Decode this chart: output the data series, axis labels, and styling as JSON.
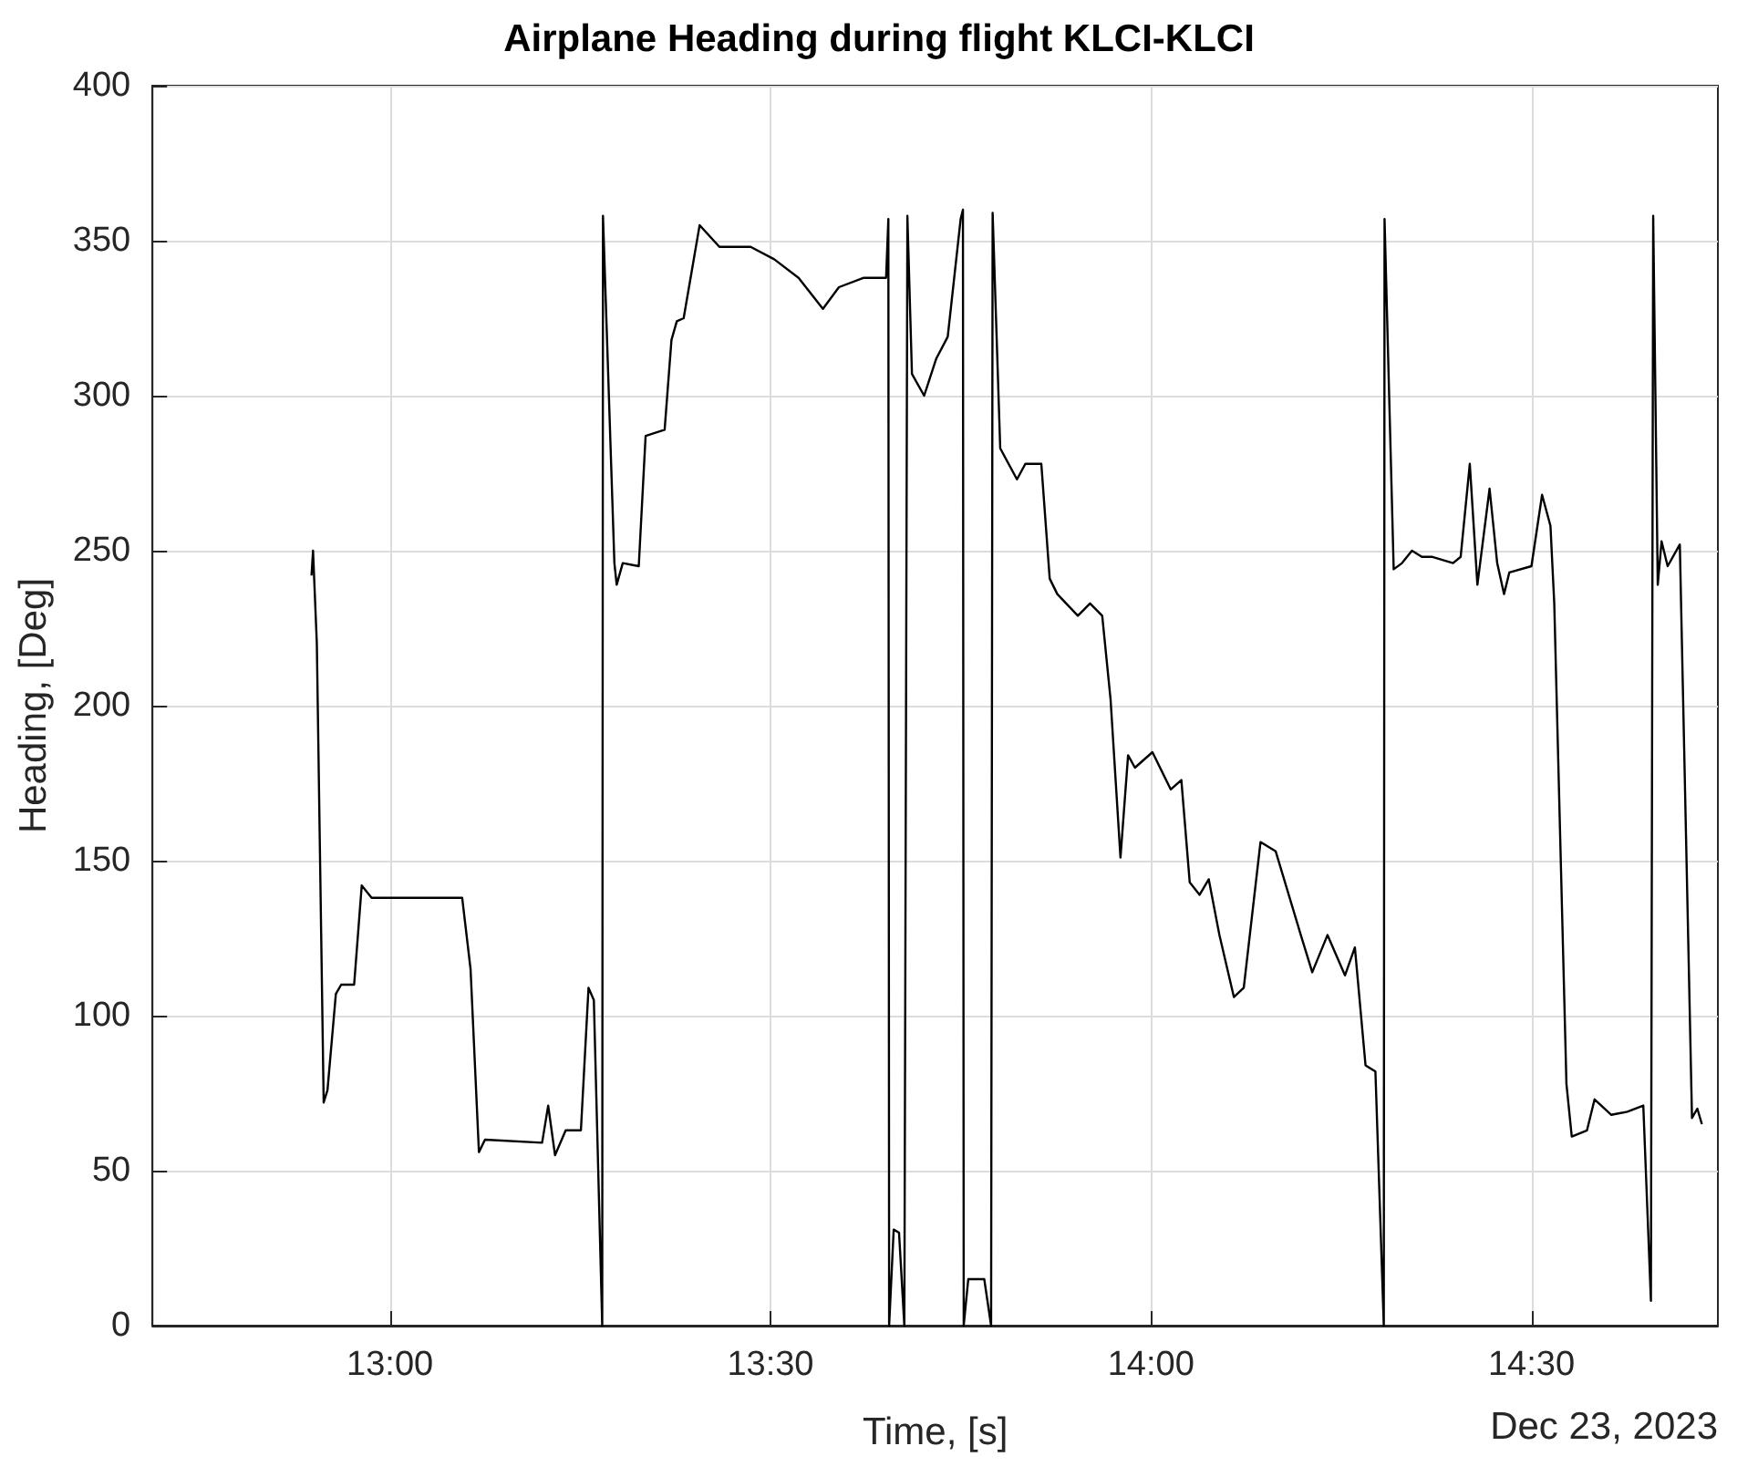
{
  "chart_data": {
    "type": "line",
    "title": "Airplane Heading during flight KLCI-KLCI",
    "xlabel": "Time, [s]",
    "ylabel": "Heading, [Deg]",
    "annotations": [
      "Dec 23, 2023"
    ],
    "xlim": [
      12.688,
      14.745
    ],
    "ylim": [
      0,
      400
    ],
    "xticks": [
      {
        "value": 13,
        "label": "13:00"
      },
      {
        "value": 13.5,
        "label": "13:30"
      },
      {
        "value": 14,
        "label": "14:00"
      },
      {
        "value": 14.5,
        "label": "14:30"
      }
    ],
    "yticks": [
      0,
      50,
      100,
      150,
      200,
      250,
      300,
      350,
      400
    ],
    "grid": true,
    "marker": "none",
    "line_style": "solid",
    "series": [
      {
        "color": "#000000",
        "x": [
          12.897,
          12.899,
          12.904,
          12.913,
          12.918,
          12.929,
          12.936,
          12.953,
          12.963,
          12.976,
          13.095,
          13.106,
          13.117,
          13.125,
          13.2,
          13.208,
          13.217,
          13.231,
          13.251,
          13.261,
          13.268,
          13.279,
          13.28,
          13.295,
          13.298,
          13.306,
          13.327,
          13.336,
          13.361,
          13.37,
          13.377,
          13.386,
          13.407,
          13.433,
          13.455,
          13.474,
          13.505,
          13.537,
          13.569,
          13.59,
          13.622,
          13.652,
          13.655,
          13.656,
          13.662,
          13.669,
          13.676,
          13.68,
          13.686,
          13.702,
          13.718,
          13.733,
          13.75,
          13.753,
          13.754,
          13.76,
          13.781,
          13.79,
          13.792,
          13.802,
          13.824,
          13.835,
          13.856,
          13.867,
          13.877,
          13.904,
          13.92,
          13.936,
          13.947,
          13.96,
          13.97,
          13.979,
          14.002,
          14.026,
          14.04,
          14.051,
          14.064,
          14.076,
          14.09,
          14.109,
          14.122,
          14.144,
          14.164,
          14.197,
          14.212,
          14.232,
          14.255,
          14.268,
          14.282,
          14.295,
          14.306,
          14.307,
          14.319,
          14.33,
          14.343,
          14.356,
          14.37,
          14.397,
          14.407,
          14.419,
          14.429,
          14.445,
          14.455,
          14.464,
          14.471,
          14.5,
          14.514,
          14.525,
          14.53,
          14.546,
          14.553,
          14.573,
          14.583,
          14.605,
          14.626,
          14.647,
          14.657,
          14.66,
          14.666,
          14.671,
          14.679,
          14.695,
          14.711,
          14.718,
          14.724
        ],
        "values": [
          242,
          250,
          220,
          72,
          76,
          107,
          110,
          110,
          142,
          138,
          138,
          115,
          56,
          60,
          59,
          71,
          55,
          63,
          63,
          109,
          105,
          0,
          358,
          246,
          239,
          246,
          245,
          287,
          289,
          318,
          324,
          325,
          355,
          348,
          348,
          348,
          344,
          338,
          328,
          335,
          338,
          338,
          357,
          0,
          31,
          30,
          0,
          358,
          307,
          300,
          312,
          319,
          357,
          360,
          0,
          15,
          15,
          0,
          359,
          283,
          273,
          278,
          278,
          241,
          236,
          229,
          233,
          229,
          202,
          151,
          184,
          180,
          185,
          173,
          176,
          143,
          139,
          144,
          126,
          106,
          109,
          156,
          153,
          126,
          114,
          126,
          113,
          122,
          84,
          82,
          0,
          357,
          244,
          246,
          250,
          248,
          248,
          246,
          248,
          278,
          239,
          270,
          246,
          236,
          243,
          245,
          268,
          258,
          233,
          78,
          61,
          63,
          73,
          68,
          69,
          71,
          8,
          358,
          239,
          253,
          245,
          252,
          67,
          70,
          65
        ]
      }
    ]
  }
}
